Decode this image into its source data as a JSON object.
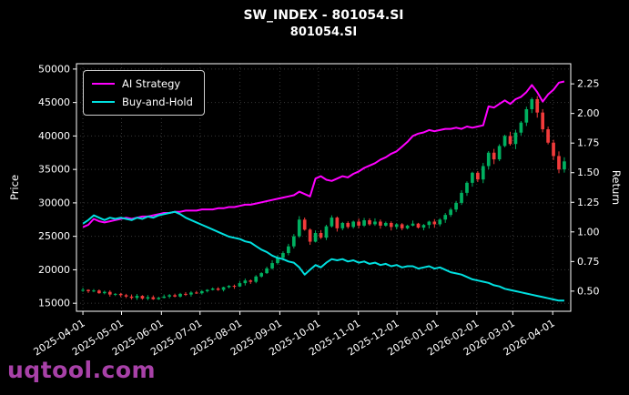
{
  "figure": {
    "title": "SW_INDEX - 801054.SI",
    "subtitle": "801054.SI",
    "watermark": "uqtool.com",
    "watermark_color": "#a841a8",
    "background": "#000000",
    "text_color": "#ffffff"
  },
  "legend": {
    "items": [
      {
        "label": "AI Strategy",
        "color": "#ff00ff"
      },
      {
        "label": "Buy-and-Hold",
        "color": "#00e0e0"
      }
    ]
  },
  "chart_data": {
    "type": "candlestick+line",
    "title": "SW_INDEX - 801054.SI",
    "subtitle": "801054.SI",
    "xlabel": "",
    "ylabel": "Price",
    "y2label": "Return",
    "grid": true,
    "legend_position": "top-left",
    "x_domain_days": [
      -5,
      379
    ],
    "x_ticks": [
      {
        "label": "2025-04-01",
        "day": 0
      },
      {
        "label": "2025-05-01",
        "day": 30
      },
      {
        "label": "2025-06-01",
        "day": 61
      },
      {
        "label": "2025-07-01",
        "day": 91
      },
      {
        "label": "2025-08-01",
        "day": 122
      },
      {
        "label": "2025-09-01",
        "day": 153
      },
      {
        "label": "2025-10-01",
        "day": 183
      },
      {
        "label": "2025-11-01",
        "day": 214
      },
      {
        "label": "2025-12-01",
        "day": 244
      },
      {
        "label": "2026-01-01",
        "day": 275
      },
      {
        "label": "2026-02-01",
        "day": 306
      },
      {
        "label": "2026-03-01",
        "day": 334
      },
      {
        "label": "2026-04-01",
        "day": 365
      }
    ],
    "left_axis": {
      "label": "Price",
      "domain": [
        13800,
        50800
      ],
      "ticks": [
        15000,
        20000,
        25000,
        30000,
        35000,
        40000,
        45000,
        50000
      ]
    },
    "right_axis": {
      "label": "Return",
      "domain": [
        0.33,
        2.42
      ],
      "ticks": [
        0.5,
        0.75,
        1.0,
        1.25,
        1.5,
        1.75,
        2.0,
        2.25
      ]
    },
    "colors": {
      "up": "#00b060",
      "down": "#f23b3b",
      "ai": "#ff00ff",
      "bh": "#00e0e0",
      "grid": "rgba(255,255,255,0.22)",
      "spine": "#ffffff"
    },
    "candles": {
      "name": "801054.SI price",
      "start_day": 0,
      "end_day": 374,
      "closes": [
        17000,
        16800,
        16900,
        16500,
        16700,
        16300,
        16400,
        16200,
        16000,
        15800,
        16100,
        15700,
        15900,
        15600,
        15800,
        16000,
        16200,
        16000,
        16400,
        16300,
        16600,
        16500,
        16800,
        17000,
        17200,
        17000,
        17400,
        17600,
        17500,
        18000,
        18400,
        18200,
        19000,
        19500,
        20200,
        21000,
        21800,
        22500,
        23500,
        25000,
        27500,
        26000,
        24200,
        25500,
        24800,
        26500,
        27800,
        26200,
        27000,
        26400,
        27200,
        26600,
        27400,
        26800,
        27200,
        26600,
        27000,
        26400,
        26800,
        26200,
        26600,
        26900,
        26300,
        26700,
        27200,
        26800,
        27500,
        28200,
        29000,
        30000,
        31500,
        33000,
        34500,
        33500,
        35500,
        37500,
        36500,
        38500,
        40000,
        38800,
        40500,
        42000,
        44000,
        45500,
        43500,
        41000,
        39000,
        37000,
        35000,
        36200
      ]
    },
    "series": [
      {
        "name": "AI Strategy",
        "axis": "right",
        "color": "#ff00ff",
        "values": [
          1.04,
          1.06,
          1.11,
          1.09,
          1.08,
          1.09,
          1.1,
          1.11,
          1.12,
          1.11,
          1.12,
          1.13,
          1.13,
          1.14,
          1.15,
          1.16,
          1.16,
          1.17,
          1.17,
          1.18,
          1.18,
          1.18,
          1.19,
          1.19,
          1.19,
          1.2,
          1.2,
          1.21,
          1.21,
          1.22,
          1.23,
          1.23,
          1.24,
          1.25,
          1.26,
          1.27,
          1.28,
          1.29,
          1.3,
          1.31,
          1.34,
          1.32,
          1.3,
          1.45,
          1.47,
          1.44,
          1.43,
          1.45,
          1.47,
          1.46,
          1.49,
          1.51,
          1.54,
          1.56,
          1.58,
          1.61,
          1.63,
          1.66,
          1.68,
          1.72,
          1.76,
          1.81,
          1.83,
          1.84,
          1.86,
          1.85,
          1.86,
          1.87,
          1.87,
          1.88,
          1.87,
          1.89,
          1.88,
          1.89,
          1.9,
          2.06,
          2.05,
          2.08,
          2.11,
          2.08,
          2.12,
          2.14,
          2.18,
          2.24,
          2.18,
          2.1,
          2.16,
          2.2,
          2.26,
          2.27
        ]
      },
      {
        "name": "Buy-and-Hold",
        "axis": "right",
        "color": "#00e0e0",
        "values": [
          1.07,
          1.1,
          1.14,
          1.12,
          1.1,
          1.12,
          1.11,
          1.12,
          1.11,
          1.1,
          1.12,
          1.11,
          1.13,
          1.12,
          1.14,
          1.15,
          1.16,
          1.17,
          1.15,
          1.12,
          1.1,
          1.08,
          1.06,
          1.04,
          1.02,
          1.0,
          0.98,
          0.96,
          0.95,
          0.94,
          0.92,
          0.91,
          0.88,
          0.85,
          0.83,
          0.8,
          0.78,
          0.77,
          0.75,
          0.74,
          0.7,
          0.64,
          0.68,
          0.72,
          0.7,
          0.74,
          0.77,
          0.76,
          0.77,
          0.75,
          0.76,
          0.74,
          0.75,
          0.73,
          0.74,
          0.72,
          0.73,
          0.71,
          0.72,
          0.7,
          0.71,
          0.71,
          0.69,
          0.7,
          0.71,
          0.69,
          0.7,
          0.68,
          0.66,
          0.65,
          0.64,
          0.62,
          0.6,
          0.59,
          0.58,
          0.57,
          0.55,
          0.54,
          0.52,
          0.51,
          0.5,
          0.49,
          0.48,
          0.47,
          0.46,
          0.45,
          0.44,
          0.43,
          0.42,
          0.42
        ]
      }
    ]
  }
}
